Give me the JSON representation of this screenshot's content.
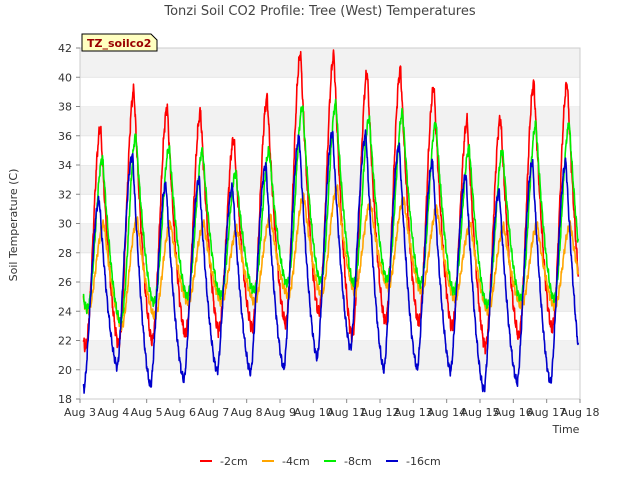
{
  "chart_data": {
    "type": "line",
    "title": "Tonzi Soil CO2 Profile: Tree (West) Temperatures",
    "xlabel": "Time",
    "ylabel": "Soil Temperature (C)",
    "annotation": "TZ_soilco2",
    "x_tick_labels": [
      "Aug 3",
      "Aug 4",
      "Aug 5",
      "Aug 6",
      "Aug 7",
      "Aug 8",
      "Aug 9",
      "Aug 10",
      "Aug 11",
      "Aug 12",
      "Aug 13",
      "Aug 14",
      "Aug 15",
      "Aug 16",
      "Aug 17",
      "Aug 18"
    ],
    "x_range_days": [
      3,
      18
    ],
    "ylim": [
      18,
      42
    ],
    "y_ticks": [
      18,
      20,
      22,
      24,
      26,
      28,
      30,
      32,
      34,
      36,
      38,
      40,
      42
    ],
    "grid": "horizontal bands",
    "legend_position": "bottom-center",
    "series_note": "Each series given as daily minimum and maximum temperatures for days Aug 3 to Aug 17; curves are diurnal cycles between these extremes.",
    "series": [
      {
        "name": "-2cm",
        "color": "#ff0000",
        "daily_min": [
          21.5,
          21.8,
          22.0,
          22.4,
          22.7,
          22.9,
          23.2,
          23.9,
          22.3,
          23.3,
          23.2,
          22.9,
          21.6,
          22.3,
          22.8
        ],
        "daily_max": [
          36.5,
          39.1,
          37.9,
          37.6,
          35.8,
          38.6,
          41.6,
          41.5,
          40.3,
          40.5,
          39.3,
          37.0,
          37.2,
          39.6,
          39.6
        ]
      },
      {
        "name": "-4cm",
        "color": "#ffa500",
        "daily_min": [
          24.0,
          23.0,
          23.6,
          24.6,
          24.6,
          24.6,
          25.0,
          25.1,
          25.3,
          25.6,
          25.3,
          24.8,
          24.0,
          24.3,
          24.3
        ],
        "daily_max": [
          30.0,
          30.3,
          30.0,
          30.0,
          29.6,
          30.5,
          31.9,
          32.5,
          31.4,
          31.7,
          31.0,
          30.0,
          29.8,
          29.9,
          29.9
        ]
      },
      {
        "name": "-8cm",
        "color": "#00ee00",
        "daily_min": [
          24.2,
          23.3,
          24.6,
          25.1,
          25.1,
          25.4,
          25.9,
          26.1,
          25.9,
          26.2,
          25.9,
          25.4,
          24.4,
          24.9,
          24.9
        ],
        "daily_max": [
          34.5,
          36.0,
          35.2,
          35.0,
          33.5,
          35.0,
          38.0,
          38.2,
          37.2,
          37.6,
          36.9,
          35.2,
          35.0,
          36.8,
          36.8
        ]
      },
      {
        "name": "-16cm",
        "color": "#0000cc",
        "daily_min": [
          18.7,
          20.2,
          18.9,
          19.3,
          19.9,
          19.8,
          20.1,
          20.8,
          21.5,
          20.0,
          20.1,
          19.9,
          18.6,
          19.1,
          19.1
        ],
        "daily_max": [
          31.6,
          34.7,
          32.7,
          33.0,
          32.5,
          34.0,
          35.9,
          36.2,
          36.1,
          35.3,
          34.2,
          33.3,
          32.2,
          34.2,
          34.2
        ]
      }
    ]
  }
}
